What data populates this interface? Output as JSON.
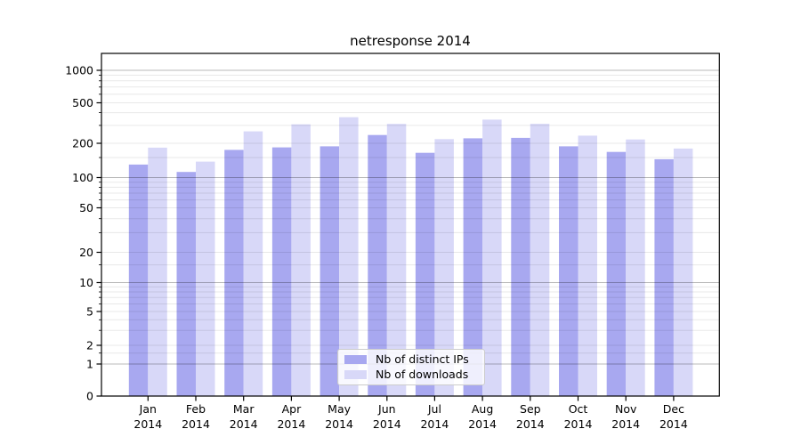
{
  "title": "netresponse 2014",
  "chart_data": {
    "type": "bar",
    "title": "netresponse 2014",
    "categories": [
      "Jan 2014",
      "Feb 2014",
      "Mar 2014",
      "Apr 2014",
      "May 2014",
      "Jun 2014",
      "Jul 2014",
      "Aug 2014",
      "Sep 2014",
      "Oct 2014",
      "Nov 2014",
      "Dec 2014"
    ],
    "series": [
      {
        "name": "Nb of distinct IPs",
        "color": "#a8a8f0",
        "values": [
          130,
          112,
          175,
          184,
          188,
          241,
          165,
          224,
          226,
          188,
          168,
          145
        ]
      },
      {
        "name": "Nb of downloads",
        "color": "#d8d8f8",
        "values": [
          183,
          138,
          262,
          307,
          361,
          310,
          220,
          342,
          311,
          238,
          218,
          180
        ]
      }
    ],
    "xlabel": "",
    "ylabel": "",
    "y_axis": {
      "scale": "log-like (linear near zero)",
      "tick_values": [
        0,
        1,
        2,
        5,
        10,
        20,
        50,
        100,
        200,
        500,
        1000
      ],
      "tick_labels": [
        "0",
        "1",
        "2",
        "5",
        "10",
        "20",
        "50",
        "100",
        "200",
        "500",
        "1000"
      ],
      "ylim": [
        0,
        1500
      ]
    },
    "grid": true,
    "legend_position": "lower center inside plot",
    "bar_group_width_fraction": 0.8
  }
}
